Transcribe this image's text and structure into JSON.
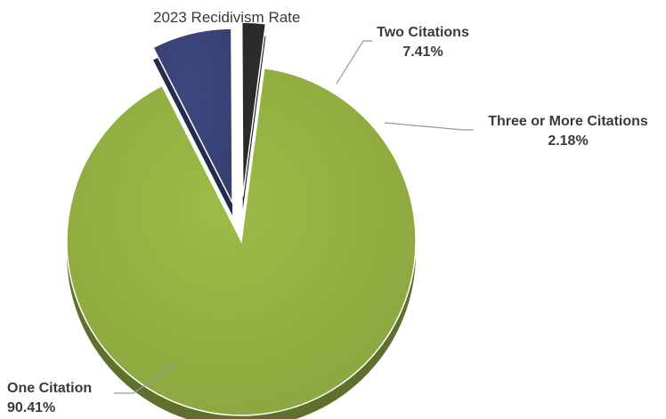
{
  "chart_data": {
    "type": "pie",
    "title": "",
    "subtitle": "2023 Recidivism Rate",
    "slices": [
      {
        "label": "One Citation",
        "value": 90.41,
        "display": "90.41%",
        "color": "#9dbb47"
      },
      {
        "label": "Two Citations",
        "value": 7.41,
        "display": "7.41%",
        "color": "#3e4880"
      },
      {
        "label": "Three or More Citations",
        "value": 2.18,
        "display": "2.18%",
        "color": "#2d2d2d"
      }
    ],
    "legend": "none",
    "style": "3d exploded pie with leader lines"
  }
}
